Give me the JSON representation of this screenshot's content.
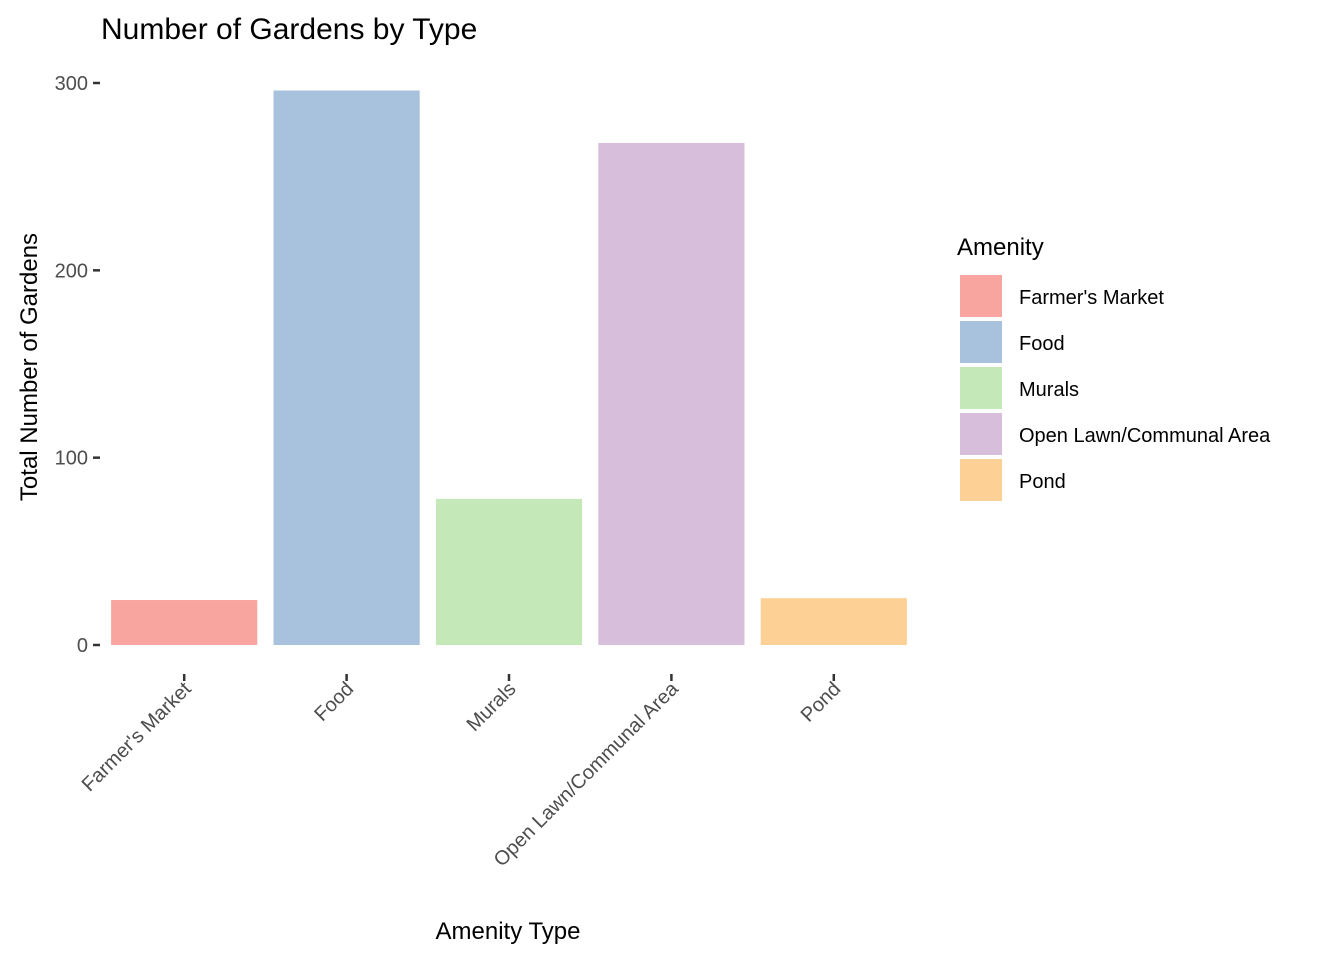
{
  "chart_data": {
    "type": "bar",
    "title": "Number of Gardens by Type",
    "xlabel": "Amenity Type",
    "ylabel": "Total Number of Gardens",
    "categories": [
      "Farmer's Market",
      "Food",
      "Murals",
      "Open Lawn/Communal Area",
      "Pond"
    ],
    "values": [
      24,
      296,
      78,
      268,
      25
    ],
    "colors": [
      "#F8A5A0",
      "#A8C1DC",
      "#C5E8B9",
      "#D7BFDC",
      "#FDD195"
    ],
    "ylim": [
      0,
      300
    ],
    "yticks": [
      0,
      100,
      200,
      300
    ],
    "grid": false,
    "legend": {
      "title": "Amenity",
      "position": "right",
      "entries": [
        "Farmer's Market",
        "Food",
        "Murals",
        "Open Lawn/Communal Area",
        "Pond"
      ]
    }
  }
}
